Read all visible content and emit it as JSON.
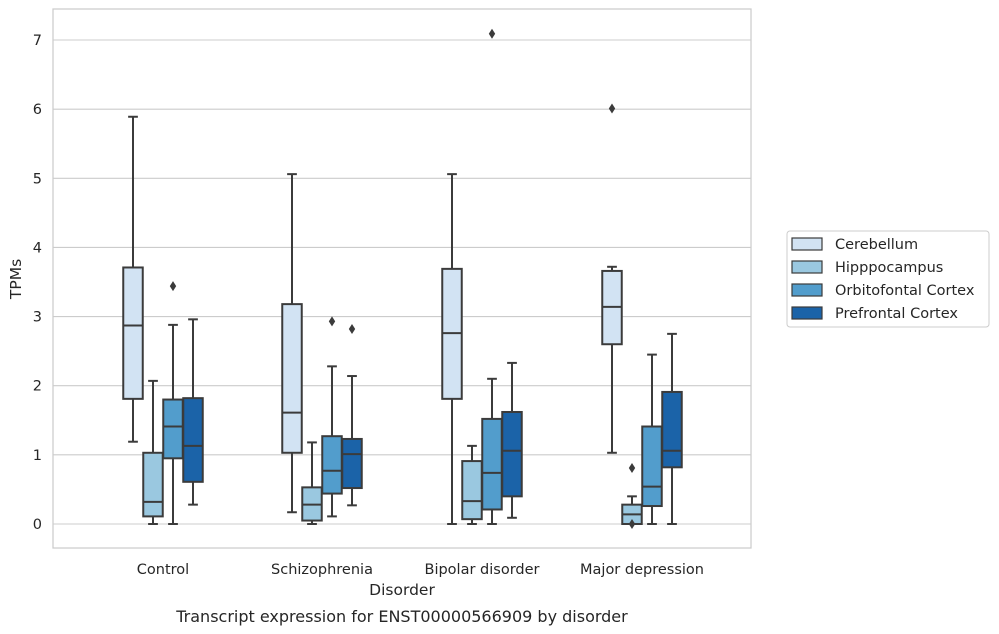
{
  "chart_data": {
    "type": "box",
    "title": "Transcript expression for ENST00000566909 by disorder",
    "xlabel": "Disorder",
    "ylabel": "TPMs",
    "ylim": [
      -0.35,
      7.45
    ],
    "yticks": [
      0,
      1,
      2,
      3,
      4,
      5,
      6,
      7
    ],
    "grid": "horizontal",
    "legend_position": "right",
    "categories": [
      "Control",
      "Schizophrenia",
      "Bipolar disorder",
      "Major depression"
    ],
    "series": [
      {
        "name": "Cerebellum",
        "color": "#d2e3f3",
        "boxes": [
          {
            "whislo": 1.19,
            "q1": 1.81,
            "med": 2.87,
            "q3": 3.71,
            "whishi": 5.89,
            "fliers": []
          },
          {
            "whislo": 0.17,
            "q1": 1.03,
            "med": 1.61,
            "q3": 3.18,
            "whishi": 5.06,
            "fliers": []
          },
          {
            "whislo": 0.0,
            "q1": 1.81,
            "med": 2.76,
            "q3": 3.69,
            "whishi": 5.06,
            "fliers": []
          },
          {
            "whislo": 1.03,
            "q1": 2.6,
            "med": 3.14,
            "q3": 3.66,
            "whishi": 3.72,
            "fliers": [
              6.01
            ]
          }
        ]
      },
      {
        "name": "Hipppocampus",
        "color": "#9ac8e0",
        "boxes": [
          {
            "whislo": 0.0,
            "q1": 0.11,
            "med": 0.32,
            "q3": 1.03,
            "whishi": 2.07,
            "fliers": []
          },
          {
            "whislo": 0.0,
            "q1": 0.05,
            "med": 0.28,
            "q3": 0.53,
            "whishi": 1.18,
            "fliers": []
          },
          {
            "whislo": 0.0,
            "q1": 0.07,
            "med": 0.33,
            "q3": 0.91,
            "whishi": 1.13,
            "fliers": []
          },
          {
            "whislo": 0.0,
            "q1": 0.0,
            "med": 0.14,
            "q3": 0.28,
            "whishi": 0.4,
            "fliers": [
              0.81,
              0.0
            ]
          }
        ]
      },
      {
        "name": "Orbitofontal Cortex",
        "color": "#529dcc",
        "boxes": [
          {
            "whislo": 0.0,
            "q1": 0.95,
            "med": 1.41,
            "q3": 1.8,
            "whishi": 2.88,
            "fliers": [
              3.44
            ]
          },
          {
            "whislo": 0.11,
            "q1": 0.44,
            "med": 0.77,
            "q3": 1.27,
            "whishi": 2.28,
            "fliers": [
              2.93
            ]
          },
          {
            "whislo": 0.0,
            "q1": 0.21,
            "med": 0.74,
            "q3": 1.52,
            "whishi": 2.1,
            "fliers": [
              7.09
            ]
          },
          {
            "whislo": 0.0,
            "q1": 0.26,
            "med": 0.54,
            "q3": 1.41,
            "whishi": 2.45,
            "fliers": []
          }
        ]
      },
      {
        "name": "Prefrontal Cortex",
        "color": "#1b63a8",
        "boxes": [
          {
            "whislo": 0.28,
            "q1": 0.61,
            "med": 1.13,
            "q3": 1.82,
            "whishi": 2.96,
            "fliers": []
          },
          {
            "whislo": 0.27,
            "q1": 0.52,
            "med": 1.01,
            "q3": 1.23,
            "whishi": 2.14,
            "fliers": [
              2.82
            ]
          },
          {
            "whislo": 0.09,
            "q1": 0.4,
            "med": 1.06,
            "q3": 1.62,
            "whishi": 2.33,
            "fliers": []
          },
          {
            "whislo": 0.0,
            "q1": 0.82,
            "med": 1.06,
            "q3": 1.91,
            "whishi": 2.75,
            "fliers": []
          }
        ]
      }
    ]
  }
}
